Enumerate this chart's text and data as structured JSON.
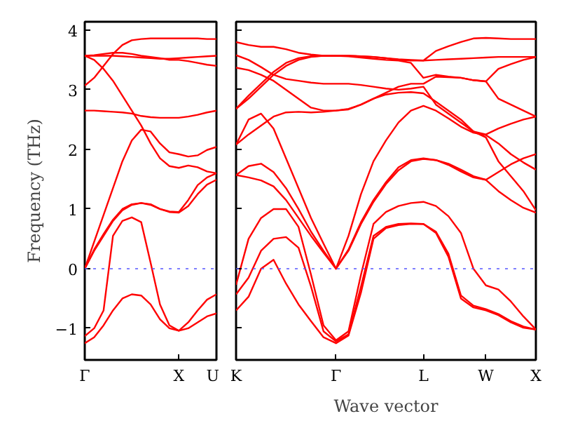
{
  "chart_data": [
    {
      "type": "line",
      "ylabel": "Frequency (THz)",
      "ylim": [
        -1.53,
        4.14
      ],
      "categories": [
        "Γ",
        null,
        null,
        null,
        null,
        null,
        null,
        null,
        null,
        null,
        "X",
        null,
        null,
        null,
        "U"
      ],
      "yticks": [
        -1,
        0,
        1,
        2,
        3,
        4
      ],
      "ref_lines": [
        {
          "axis": "y",
          "value": 0,
          "color": "#5555ff",
          "line_style": "dotted"
        }
      ],
      "series": [
        {
          "color": "#ff0000",
          "values": [
            -1.25,
            -1.15,
            -0.95,
            -0.7,
            -0.5,
            -0.43,
            -0.45,
            -0.6,
            -0.85,
            -1.0,
            -1.04,
            -1.0,
            -0.9,
            -0.8,
            -0.75
          ]
        },
        {
          "color": "#ff0000",
          "values": [
            -1.13,
            -1.0,
            -0.7,
            0.55,
            0.8,
            0.86,
            0.78,
            0.1,
            -0.6,
            -0.95,
            -1.04,
            -0.9,
            -0.7,
            -0.52,
            -0.43
          ]
        },
        {
          "color": "#ff0000",
          "values": [
            0,
            0.3,
            0.55,
            0.8,
            0.98,
            1.07,
            1.1,
            1.08,
            1.0,
            0.95,
            0.94,
            1.05,
            1.25,
            1.41,
            1.49
          ]
        },
        {
          "color": "#ff0000",
          "values": [
            0,
            0.32,
            0.58,
            0.82,
            1.0,
            1.08,
            1.1,
            1.07,
            1.0,
            0.96,
            0.95,
            1.15,
            1.4,
            1.53,
            1.6
          ]
        },
        {
          "color": "#ff0000",
          "values": [
            0,
            0.45,
            0.9,
            1.35,
            1.8,
            2.15,
            2.33,
            2.3,
            2.1,
            1.95,
            1.92,
            1.88,
            1.9,
            1.99,
            2.04
          ]
        },
        {
          "color": "#ff0000",
          "values": [
            3.57,
            3.5,
            3.35,
            3.15,
            2.9,
            2.65,
            2.4,
            2.1,
            1.85,
            1.72,
            1.69,
            1.73,
            1.7,
            1.63,
            1.6
          ]
        },
        {
          "color": "#ff0000",
          "values": [
            2.65,
            2.65,
            2.64,
            2.63,
            2.62,
            2.6,
            2.56,
            2.54,
            2.53,
            2.53,
            2.53,
            2.55,
            2.58,
            2.62,
            2.65
          ]
        },
        {
          "color": "#ff0000",
          "values": [
            3.07,
            3.2,
            3.4,
            3.6,
            3.75,
            3.83,
            3.85,
            3.86,
            3.86,
            3.86,
            3.86,
            3.86,
            3.86,
            3.85,
            3.85
          ]
        },
        {
          "color": "#ff0000",
          "values": [
            3.57,
            3.58,
            3.6,
            3.62,
            3.62,
            3.6,
            3.57,
            3.55,
            3.53,
            3.5,
            3.5,
            3.48,
            3.45,
            3.42,
            3.4
          ]
        },
        {
          "color": "#ff0000",
          "values": [
            3.57,
            3.57,
            3.57,
            3.57,
            3.56,
            3.55,
            3.54,
            3.53,
            3.52,
            3.52,
            3.53,
            3.54,
            3.55,
            3.56,
            3.57
          ]
        }
      ]
    },
    {
      "type": "line",
      "xlabel": "Wave vector",
      "ylim": [
        -1.53,
        4.14
      ],
      "tick_labels": "x",
      "categories": [
        "K",
        null,
        null,
        null,
        null,
        null,
        null,
        null,
        "Γ",
        null,
        null,
        null,
        null,
        null,
        null,
        "L",
        null,
        null,
        null,
        null,
        "W",
        null,
        null,
        null,
        "X"
      ],
      "yticks": [
        -1,
        0,
        1,
        2,
        3,
        4
      ],
      "ref_lines": [
        {
          "axis": "y",
          "value": 0,
          "color": "#5555ff",
          "line_style": "dotted"
        }
      ],
      "series": [
        {
          "color": "#ff0000",
          "values": [
            -0.7,
            -0.47,
            0.0,
            0.15,
            -0.25,
            -0.6,
            -0.88,
            -1.15,
            -1.25,
            -1.12,
            -0.4,
            0.5,
            0.68,
            0.73,
            0.75,
            0.75,
            0.6,
            0.2,
            -0.5,
            -0.65,
            -0.7,
            -0.78,
            -0.9,
            -0.99,
            -1.02
          ]
        },
        {
          "color": "#ff0000",
          "values": [
            -0.43,
            -0.15,
            0.3,
            0.5,
            0.53,
            0.35,
            -0.3,
            -1.05,
            -1.22,
            -1.1,
            -0.3,
            0.55,
            0.7,
            0.75,
            0.76,
            0.75,
            0.62,
            0.25,
            -0.45,
            -0.62,
            -0.68,
            -0.76,
            -0.88,
            -0.97,
            -1.02
          ]
        },
        {
          "color": "#ff0000",
          "values": [
            -0.27,
            0.5,
            0.85,
            1.0,
            1.0,
            0.7,
            -0.1,
            -0.95,
            -1.2,
            -1.05,
            -0.1,
            0.75,
            0.95,
            1.05,
            1.1,
            1.12,
            1.05,
            0.88,
            0.6,
            0.0,
            -0.28,
            -0.35,
            -0.55,
            -0.8,
            -1.02
          ]
        },
        {
          "color": "#ff0000",
          "values": [
            1.57,
            1.53,
            1.48,
            1.38,
            1.15,
            0.85,
            0.55,
            0.27,
            0,
            0.3,
            0.75,
            1.12,
            1.42,
            1.65,
            1.8,
            1.84,
            1.82,
            1.74,
            1.63,
            1.53,
            1.49,
            1.3,
            1.15,
            1.02,
            0.94
          ]
        },
        {
          "color": "#ff0000",
          "values": [
            1.57,
            1.72,
            1.76,
            1.62,
            1.35,
            1.0,
            0.62,
            0.3,
            0,
            0.32,
            0.78,
            1.15,
            1.45,
            1.7,
            1.82,
            1.85,
            1.82,
            1.76,
            1.66,
            1.55,
            1.49,
            1.62,
            1.75,
            1.85,
            1.92
          ]
        },
        {
          "color": "#ff0000",
          "values": [
            2.08,
            2.5,
            2.6,
            2.35,
            1.85,
            1.35,
            0.85,
            0.42,
            0,
            0.55,
            1.25,
            1.8,
            2.15,
            2.45,
            2.65,
            2.73,
            2.65,
            2.52,
            2.38,
            2.28,
            2.24,
            2.1,
            1.92,
            1.78,
            1.66
          ]
        },
        {
          "color": "#ff0000",
          "values": [
            2.08,
            2.25,
            2.4,
            2.55,
            2.62,
            2.63,
            2.62,
            2.63,
            2.65,
            2.68,
            2.75,
            2.85,
            2.95,
            3.05,
            3.1,
            3.1,
            3.22,
            3.21,
            3.2,
            3.16,
            3.14,
            3.35,
            3.43,
            3.5,
            3.55
          ]
        },
        {
          "color": "#ff0000",
          "values": [
            3.37,
            3.33,
            3.25,
            3.15,
            3.0,
            2.85,
            2.7,
            2.65,
            2.65,
            2.67,
            2.75,
            2.85,
            2.92,
            2.95,
            2.96,
            2.94,
            2.8,
            2.65,
            2.5,
            2.3,
            2.25,
            2.35,
            2.43,
            2.5,
            2.55
          ]
        },
        {
          "color": "#ff0000",
          "values": [
            3.58,
            3.5,
            3.38,
            3.25,
            3.18,
            3.15,
            3.12,
            3.1,
            3.1,
            3.1,
            3.08,
            3.05,
            3.02,
            3.0,
            3.02,
            3.05,
            2.75,
            2.6,
            2.45,
            2.3,
            2.2,
            1.8,
            1.55,
            1.3,
            0.98
          ]
        },
        {
          "color": "#ff0000",
          "values": [
            2.68,
            2.9,
            3.1,
            3.3,
            3.45,
            3.53,
            3.56,
            3.57,
            3.57,
            3.57,
            3.56,
            3.55,
            3.53,
            3.51,
            3.5,
            3.49,
            3.65,
            3.73,
            3.8,
            3.86,
            3.87,
            3.86,
            3.85,
            3.85,
            3.85
          ]
        },
        {
          "color": "#ff0000",
          "values": [
            2.68,
            2.85,
            3.05,
            3.25,
            3.4,
            3.5,
            3.55,
            3.57,
            3.57,
            3.57,
            3.56,
            3.55,
            3.53,
            3.5,
            3.49,
            3.49,
            3.5,
            3.51,
            3.52,
            3.53,
            3.54,
            3.55,
            3.55,
            3.55,
            3.55
          ]
        },
        {
          "color": "#ff0000",
          "values": [
            3.8,
            3.75,
            3.72,
            3.72,
            3.68,
            3.62,
            3.59,
            3.57,
            3.57,
            3.56,
            3.54,
            3.52,
            3.5,
            3.49,
            3.45,
            3.2,
            3.25,
            3.22,
            3.2,
            3.16,
            3.14,
            2.85,
            2.75,
            2.65,
            2.55
          ]
        }
      ]
    }
  ]
}
